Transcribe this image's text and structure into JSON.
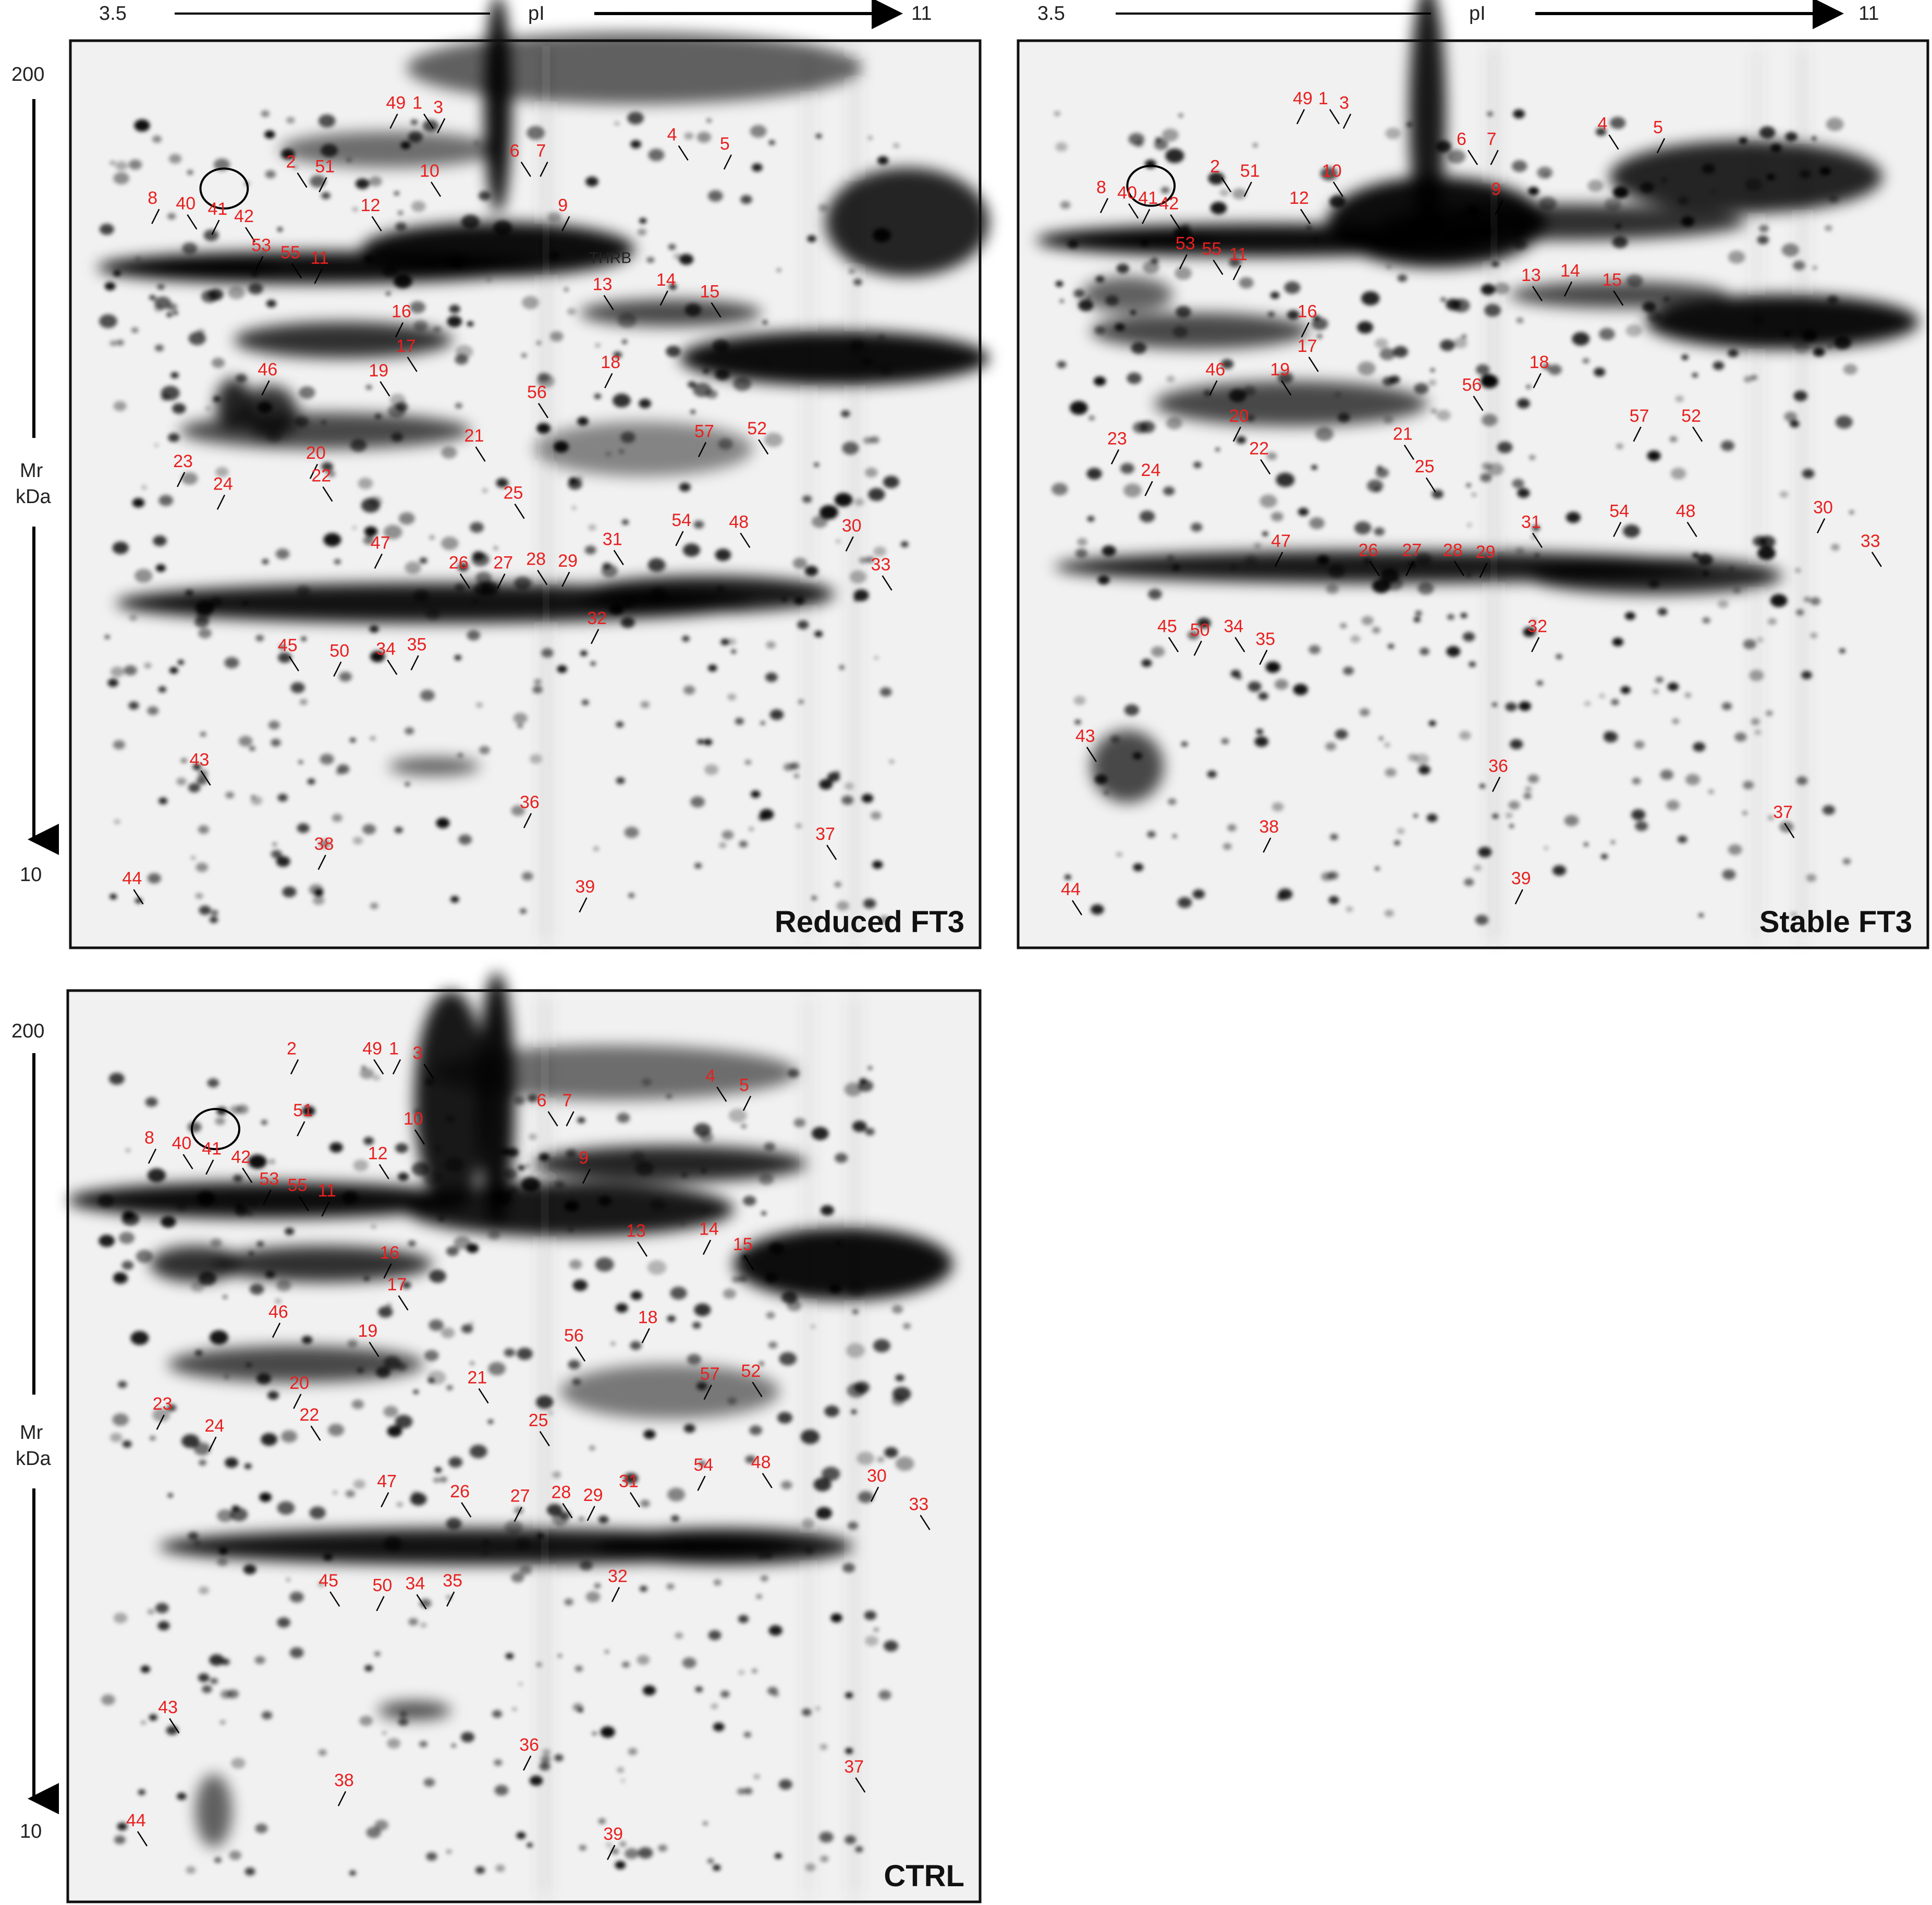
{
  "axes": {
    "pi_left": "3.5",
    "pi_label": "pI",
    "pi_right": "11",
    "mr_top": "200",
    "mr_label_1": "Mr",
    "mr_label_2": "kDa",
    "mr_bottom": "10"
  },
  "gels": [
    {
      "id": "reduced",
      "title": "Reduced FT3",
      "extra_label": "THRB",
      "spots": [
        "49",
        "1",
        "3",
        "2",
        "51",
        "4",
        "5",
        "6",
        "7",
        "10",
        "9",
        "12",
        "8",
        "40",
        "41",
        "42",
        "53",
        "55",
        "11",
        "13",
        "14",
        "15",
        "16",
        "17",
        "18",
        "19",
        "46",
        "56",
        "20",
        "21",
        "57",
        "52",
        "23",
        "22",
        "24",
        "25",
        "54",
        "48",
        "47",
        "26",
        "27",
        "28",
        "29",
        "31",
        "30",
        "33",
        "32",
        "45",
        "50",
        "34",
        "35",
        "43",
        "36",
        "37",
        "38",
        "44",
        "39"
      ]
    },
    {
      "id": "stable",
      "title": "Stable FT3",
      "spots": [
        "49",
        "1",
        "3",
        "2",
        "51",
        "4",
        "5",
        "6",
        "7",
        "10",
        "9",
        "12",
        "8",
        "40",
        "41",
        "42",
        "53",
        "55",
        "11",
        "13",
        "14",
        "15",
        "16",
        "17",
        "18",
        "19",
        "46",
        "56",
        "20",
        "21",
        "57",
        "52",
        "23",
        "22",
        "24",
        "25",
        "54",
        "48",
        "47",
        "26",
        "27",
        "28",
        "29",
        "31",
        "30",
        "33",
        "32",
        "45",
        "50",
        "34",
        "35",
        "43",
        "36",
        "37",
        "38",
        "44",
        "39"
      ]
    },
    {
      "id": "ctrl",
      "title": "CTRL",
      "spots": [
        "2",
        "49",
        "1",
        "3",
        "51",
        "4",
        "5",
        "6",
        "7",
        "10",
        "9",
        "12",
        "8",
        "40",
        "41",
        "42",
        "53",
        "55",
        "11",
        "13",
        "14",
        "15",
        "16",
        "17",
        "18",
        "19",
        "46",
        "56",
        "20",
        "21",
        "57",
        "52",
        "23",
        "22",
        "24",
        "25",
        "54",
        "48",
        "47",
        "26",
        "27",
        "28",
        "29",
        "31",
        "30",
        "33",
        "32",
        "45",
        "50",
        "34",
        "35",
        "43",
        "36",
        "37",
        "38",
        "44",
        "39"
      ]
    }
  ],
  "colors": {
    "spot_label": "#e8201f",
    "frame": "#111111",
    "gel_background": "#f1f1f1"
  }
}
